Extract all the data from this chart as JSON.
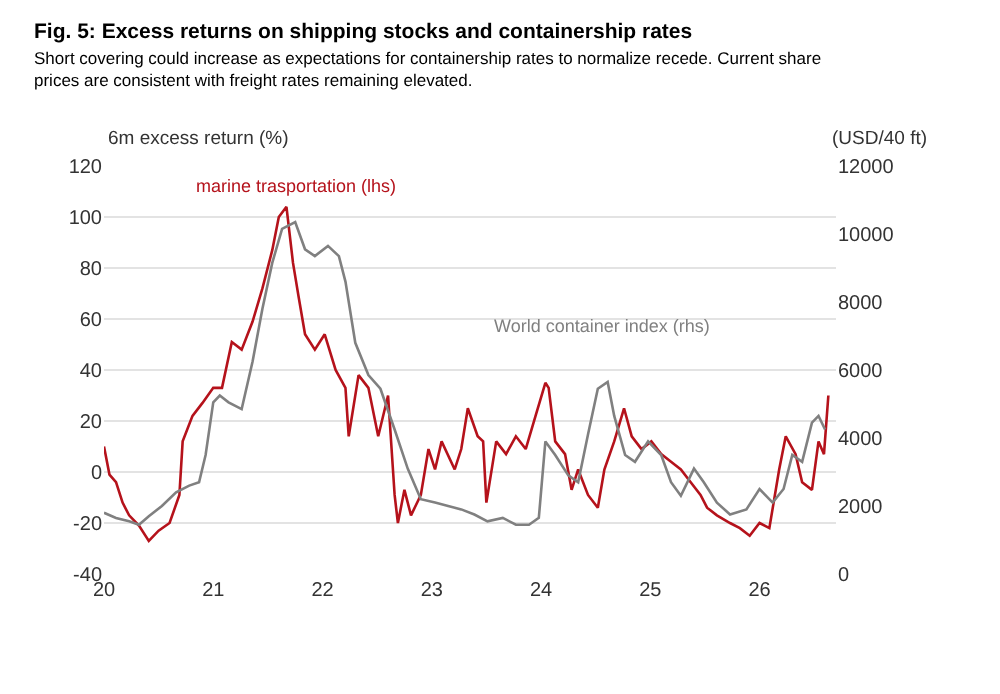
{
  "chart_data": {
    "type": "line",
    "title": "Fig. 5: Excess returns on shipping stocks and containership rates",
    "subtitle": "Short covering could increase as expectations for containership rates to normalize recede. Current share prices are consistent with freight rates remaining elevated.",
    "ylabel": "6m excess return (%)",
    "y2label": "(USD/40 ft)",
    "xlim": [
      20,
      26.7
    ],
    "xticks": [
      20,
      21,
      22,
      23,
      24,
      25,
      26
    ],
    "ylim": [
      -40,
      120
    ],
    "yticks": [
      -40,
      -20,
      0,
      20,
      40,
      60,
      80,
      100,
      120
    ],
    "y2lim": [
      0,
      12000
    ],
    "y2ticks": [
      0,
      2000,
      4000,
      6000,
      8000,
      10000,
      12000
    ],
    "grid": "y",
    "legend": false,
    "marker": "none",
    "line_style": "solid",
    "series": [
      {
        "name": "World container index (rhs)",
        "color": "#808080",
        "axis": "y2",
        "x": [
          20.0,
          20.11,
          20.23,
          20.32,
          20.41,
          20.53,
          20.66,
          20.78,
          20.87,
          20.93,
          21.0,
          21.06,
          21.14,
          21.26,
          21.36,
          21.45,
          21.54,
          21.63,
          21.75,
          21.84,
          21.93,
          22.05,
          22.15,
          22.21,
          22.3,
          22.42,
          22.53,
          22.66,
          22.78,
          22.9,
          23.03,
          23.15,
          23.27,
          23.39,
          23.51,
          23.65,
          23.77,
          23.89,
          23.98,
          24.04,
          24.13,
          24.25,
          24.34,
          24.43,
          24.52,
          24.61,
          24.67,
          24.77,
          24.86,
          24.98,
          25.1,
          25.19,
          25.28,
          25.4,
          25.49,
          25.61,
          25.73,
          25.88,
          26.0,
          26.12,
          26.22,
          26.3,
          26.39,
          26.48,
          26.54,
          26.6
        ],
        "values": [
          1800,
          1650,
          1550,
          1450,
          1700,
          2000,
          2400,
          2600,
          2700,
          3500,
          5050,
          5250,
          5050,
          4850,
          6250,
          7800,
          9150,
          10150,
          10350,
          9550,
          9350,
          9650,
          9350,
          8600,
          6800,
          5850,
          5450,
          4250,
          3100,
          2200,
          2100,
          2000,
          1900,
          1750,
          1550,
          1650,
          1450,
          1450,
          1650,
          3900,
          3500,
          2900,
          2700,
          4100,
          5450,
          5650,
          4650,
          3500,
          3300,
          3900,
          3500,
          2700,
          2300,
          3100,
          2700,
          2100,
          1750,
          1900,
          2500,
          2100,
          2500,
          3500,
          3300,
          4450,
          4650,
          4250
        ]
      },
      {
        "name": "marine trasportation (lhs)",
        "color": "#b5121b",
        "axis": "y",
        "x": [
          20.0,
          20.05,
          20.11,
          20.17,
          20.23,
          20.32,
          20.41,
          20.5,
          20.6,
          20.69,
          20.72,
          20.81,
          20.9,
          21.0,
          21.08,
          21.17,
          21.26,
          21.36,
          21.45,
          21.54,
          21.6,
          21.67,
          21.73,
          21.78,
          21.84,
          21.93,
          22.02,
          22.12,
          22.21,
          22.24,
          22.33,
          22.42,
          22.51,
          22.6,
          22.66,
          22.69,
          22.75,
          22.81,
          22.9,
          22.97,
          23.03,
          23.09,
          23.21,
          23.27,
          23.33,
          23.42,
          23.47,
          23.5,
          23.59,
          23.68,
          23.77,
          23.86,
          23.95,
          24.04,
          24.07,
          24.13,
          24.22,
          24.28,
          24.34,
          24.43,
          24.52,
          24.58,
          24.67,
          24.76,
          24.83,
          24.92,
          25.01,
          25.1,
          25.19,
          25.28,
          25.37,
          25.46,
          25.52,
          25.61,
          25.73,
          25.82,
          25.91,
          26.0,
          26.09,
          26.18,
          26.24,
          26.33,
          26.39,
          26.48,
          26.54,
          26.59,
          26.63
        ],
        "values": [
          10,
          -1,
          -4,
          -12,
          -17,
          -21,
          -27,
          -23,
          -20,
          -9,
          12,
          22,
          27,
          33,
          33,
          51,
          48,
          59,
          72,
          87,
          100,
          104,
          82,
          69,
          54,
          48,
          54,
          40,
          33,
          14,
          38,
          33,
          14,
          30,
          -9,
          -20,
          -7,
          -17,
          -9,
          9,
          1,
          12,
          1,
          9,
          25,
          14,
          12,
          -12,
          12,
          7,
          14,
          9,
          22,
          35,
          33,
          12,
          7,
          -7,
          1,
          -9,
          -14,
          1,
          12,
          25,
          14,
          9,
          12,
          7,
          4,
          1,
          -4,
          -9,
          -14,
          -17,
          -20,
          -22,
          -25,
          -20,
          -22,
          1,
          14,
          7,
          -4,
          -7,
          12,
          7,
          30
        ]
      }
    ]
  }
}
